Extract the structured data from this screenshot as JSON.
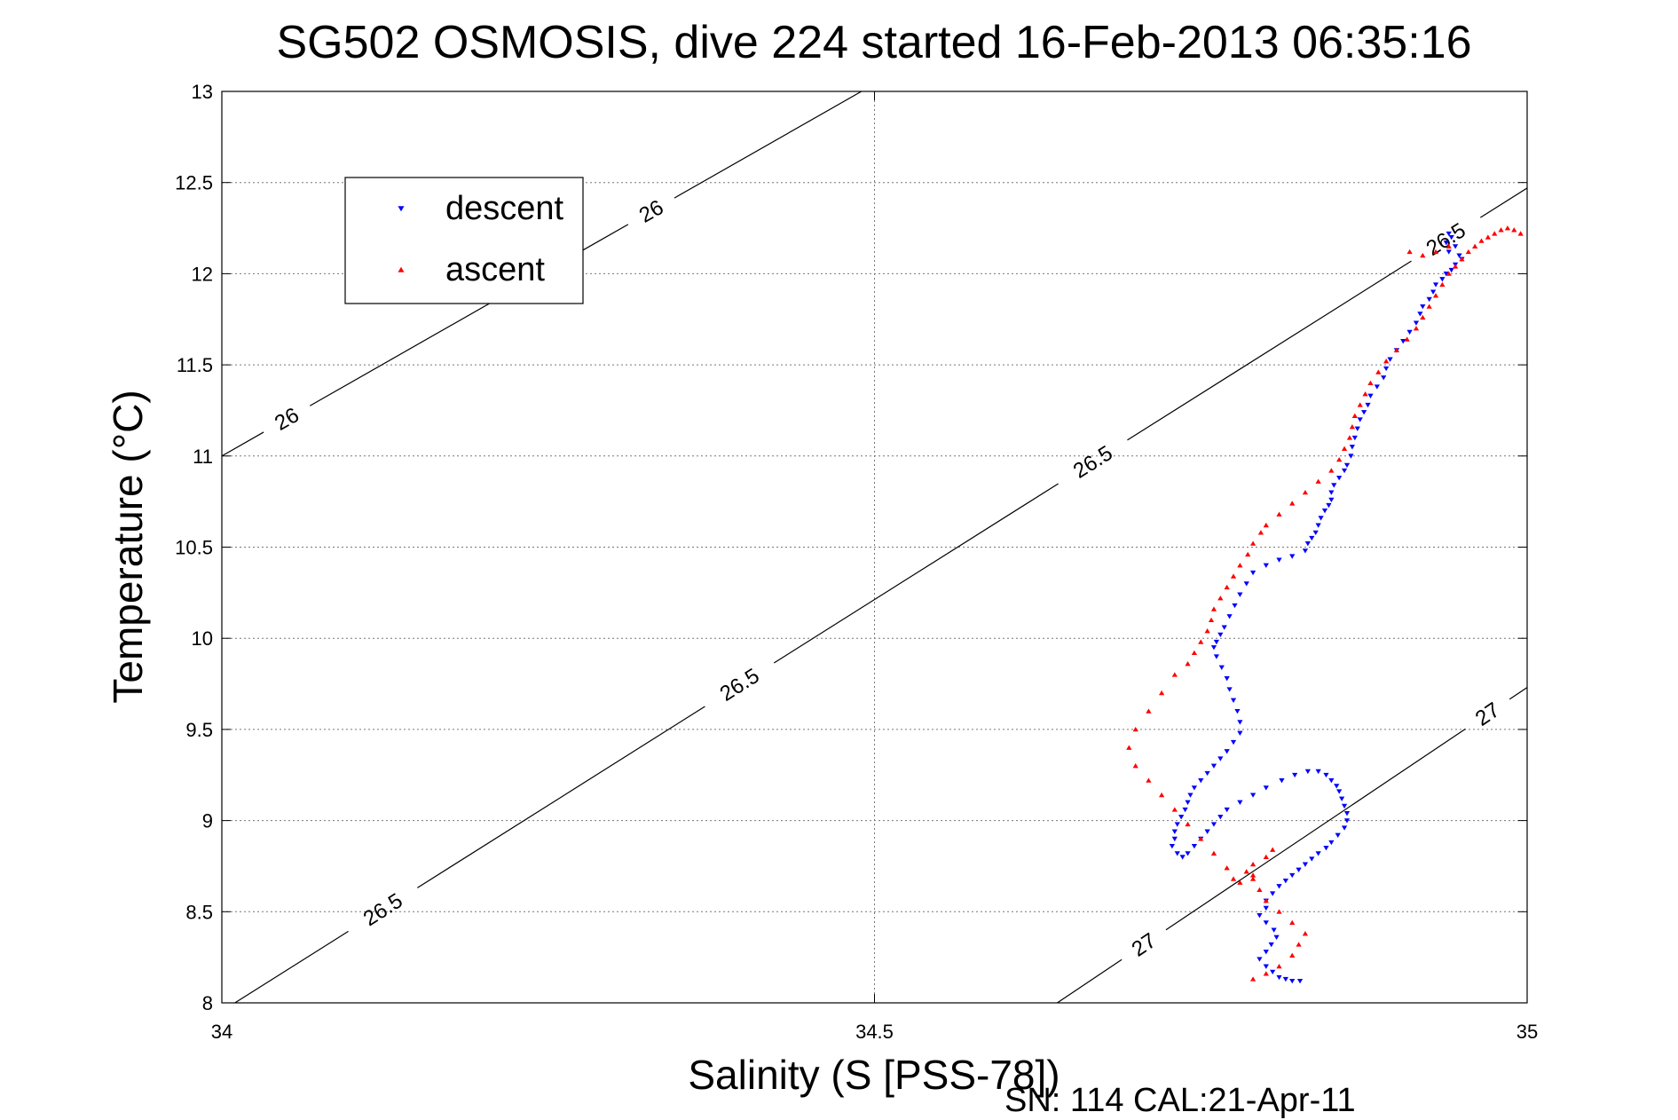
{
  "chart_data": {
    "type": "scatter",
    "title": "SG502 OSMOSIS, dive 224 started 16-Feb-2013 06:35:16",
    "xlabel": "Salinity (S [PSS-78])",
    "ylabel": "Temperature (°C)",
    "xlim": [
      34,
      35
    ],
    "ylim": [
      8,
      13
    ],
    "xticks": [
      34,
      34.5,
      35
    ],
    "xtick_labels": [
      "34",
      "34.5",
      "35"
    ],
    "yticks": [
      8,
      8.5,
      9,
      9.5,
      10,
      10.5,
      11,
      11.5,
      12,
      12.5,
      13
    ],
    "ytick_labels": [
      "8",
      "8.5",
      "9",
      "9.5",
      "10",
      "10.5",
      "11",
      "11.5",
      "12",
      "12.5",
      "13"
    ],
    "grid": true,
    "legend_position": "top-left",
    "footer": "SN: 114  CAL:21-Apr-11",
    "density_contours": [
      {
        "label": "26",
        "points": [
          [
            34.0,
            11.0
          ],
          [
            34.49,
            13.0
          ]
        ],
        "label_positions": [
          [
            34.05,
            11.2
          ],
          [
            34.33,
            12.33
          ]
        ]
      },
      {
        "label": "26.5",
        "points": [
          [
            34.01,
            8.0
          ],
          [
            35.0,
            12.47
          ]
        ],
        "label_positions": [
          [
            34.12,
            8.55
          ],
          [
            34.39,
            9.82
          ],
          [
            34.66,
            11.05
          ],
          [
            34.935,
            12.22
          ]
        ]
      },
      {
        "label": "27",
        "points": [
          [
            34.64,
            8.0
          ],
          [
            35.0,
            9.73
          ]
        ],
        "label_positions": [
          [
            34.71,
            8.28
          ],
          [
            34.97,
            9.58
          ]
        ]
      }
    ],
    "series": [
      {
        "name": "descent",
        "color": "#0000ff",
        "marker": "triangle-down",
        "x": [
          34.94,
          34.942,
          34.938,
          34.945,
          34.94,
          34.948,
          34.95,
          34.945,
          34.942,
          34.938,
          34.935,
          34.93,
          34.928,
          34.925,
          34.92,
          34.918,
          34.915,
          34.91,
          34.905,
          34.9,
          34.895,
          34.892,
          34.89,
          34.885,
          34.88,
          34.878,
          34.875,
          34.872,
          34.87,
          34.868,
          34.866,
          34.865,
          34.862,
          34.86,
          34.856,
          34.852,
          34.85,
          34.85,
          34.848,
          34.845,
          34.842,
          34.84,
          34.838,
          34.835,
          34.832,
          34.83,
          34.82,
          34.81,
          34.8,
          34.79,
          34.785,
          34.78,
          34.776,
          34.772,
          34.768,
          34.765,
          34.762,
          34.76,
          34.762,
          34.766,
          34.77,
          34.772,
          34.775,
          34.778,
          34.78,
          34.78,
          34.775,
          34.77,
          34.765,
          34.76,
          34.755,
          34.75,
          34.745,
          34.742,
          34.74,
          34.738,
          34.735,
          34.732,
          34.73,
          34.73,
          34.728,
          34.732,
          34.736,
          34.74,
          34.745,
          34.75,
          34.755,
          34.76,
          34.765,
          34.77,
          34.78,
          34.79,
          34.8,
          34.812,
          34.822,
          34.832,
          34.84,
          34.846,
          34.85,
          34.854,
          34.856,
          34.858,
          34.86,
          34.862,
          34.862,
          34.86,
          34.855,
          34.85,
          34.846,
          34.84,
          34.835,
          34.83,
          34.825,
          34.82,
          34.815,
          34.81,
          34.805,
          34.8,
          34.8,
          34.795,
          34.8,
          34.806,
          34.808,
          34.804,
          34.8,
          34.795,
          34.8,
          34.805,
          34.81,
          34.815,
          34.82,
          34.826
        ],
        "y": [
          12.22,
          12.2,
          12.17,
          12.15,
          12.12,
          12.1,
          12.08,
          12.05,
          12.02,
          12.0,
          11.97,
          11.94,
          11.9,
          11.86,
          11.82,
          11.78,
          11.73,
          11.68,
          11.63,
          11.58,
          11.53,
          11.48,
          11.43,
          11.38,
          11.33,
          11.28,
          11.24,
          11.2,
          11.15,
          11.1,
          11.05,
          11.0,
          10.95,
          10.92,
          10.88,
          10.84,
          10.8,
          10.76,
          10.73,
          10.7,
          10.66,
          10.62,
          10.58,
          10.55,
          10.52,
          10.48,
          10.45,
          10.43,
          10.4,
          10.36,
          10.3,
          10.24,
          10.18,
          10.12,
          10.06,
          10.02,
          9.98,
          9.95,
          9.9,
          9.84,
          9.78,
          9.72,
          9.66,
          9.6,
          9.54,
          9.48,
          9.43,
          9.38,
          9.34,
          9.3,
          9.26,
          9.22,
          9.18,
          9.14,
          9.1,
          9.06,
          9.02,
          8.98,
          8.94,
          8.9,
          8.86,
          8.82,
          8.8,
          8.82,
          8.86,
          8.9,
          8.94,
          8.98,
          9.02,
          9.06,
          9.1,
          9.14,
          9.18,
          9.22,
          9.25,
          9.27,
          9.27,
          9.25,
          9.22,
          9.19,
          9.16,
          9.12,
          9.08,
          9.04,
          9.0,
          8.96,
          8.92,
          8.88,
          8.85,
          8.82,
          8.79,
          8.76,
          8.73,
          8.7,
          8.67,
          8.64,
          8.6,
          8.56,
          8.52,
          8.48,
          8.44,
          8.4,
          8.36,
          8.32,
          8.28,
          8.24,
          8.2,
          8.17,
          8.14,
          8.13,
          8.12,
          8.12
        ]
      },
      {
        "name": "ascent",
        "color": "#ff0000",
        "marker": "triangle-up",
        "x": [
          34.79,
          34.8,
          34.81,
          34.82,
          34.825,
          34.83,
          34.82,
          34.81,
          34.8,
          34.795,
          34.79,
          34.785,
          34.79,
          34.8,
          34.805,
          34.79,
          34.78,
          34.775,
          34.77,
          34.76,
          34.75,
          34.74,
          34.73,
          34.72,
          34.71,
          34.7,
          34.695,
          34.7,
          34.71,
          34.72,
          34.73,
          34.74,
          34.745,
          34.75,
          34.755,
          34.758,
          34.76,
          34.765,
          34.77,
          34.775,
          34.78,
          34.786,
          34.79,
          34.796,
          34.8,
          34.81,
          34.82,
          34.83,
          34.84,
          34.85,
          34.856,
          34.86,
          34.864,
          34.866,
          34.868,
          34.872,
          34.876,
          34.88,
          34.886,
          34.892,
          34.9,
          34.908,
          34.915,
          34.92,
          34.925,
          34.93,
          34.935,
          34.94,
          34.945,
          34.95,
          34.955,
          34.96,
          34.965,
          34.97,
          34.975,
          34.98,
          34.985,
          34.99,
          34.995,
          34.91,
          34.92,
          34.93,
          34.94
        ],
        "y": [
          8.13,
          8.16,
          8.2,
          8.26,
          8.32,
          8.38,
          8.44,
          8.5,
          8.56,
          8.62,
          8.68,
          8.72,
          8.76,
          8.8,
          8.84,
          8.7,
          8.66,
          8.68,
          8.74,
          8.82,
          8.9,
          8.98,
          9.06,
          9.14,
          9.22,
          9.3,
          9.4,
          9.5,
          9.6,
          9.7,
          9.8,
          9.86,
          9.92,
          9.98,
          10.04,
          10.1,
          10.16,
          10.22,
          10.28,
          10.34,
          10.4,
          10.46,
          10.52,
          10.58,
          10.62,
          10.68,
          10.74,
          10.8,
          10.86,
          10.92,
          10.98,
          11.04,
          11.1,
          11.16,
          11.22,
          11.28,
          11.34,
          11.4,
          11.46,
          11.52,
          11.58,
          11.64,
          11.7,
          11.76,
          11.82,
          11.88,
          11.94,
          12.0,
          12.04,
          12.08,
          12.12,
          12.15,
          12.18,
          12.2,
          12.22,
          12.24,
          12.25,
          12.24,
          12.22,
          12.12,
          12.1,
          12.12,
          12.15
        ]
      }
    ]
  }
}
